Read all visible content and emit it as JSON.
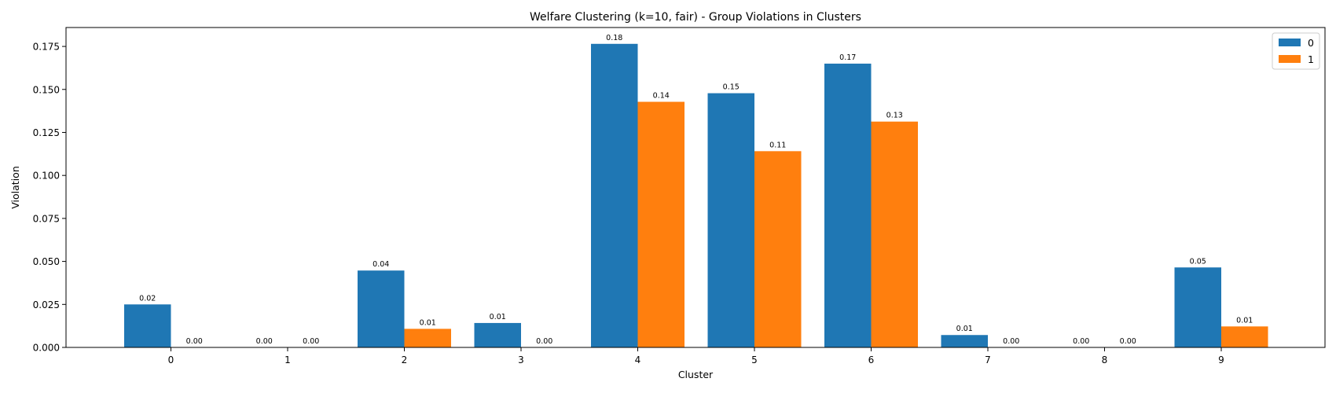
{
  "chart_data": {
    "type": "bar",
    "title": "Welfare Clustering (k=10, fair) - Group Violations in Clusters",
    "xlabel": "Cluster",
    "ylabel": "Violation",
    "categories": [
      "0",
      "1",
      "2",
      "3",
      "4",
      "5",
      "6",
      "7",
      "8",
      "9"
    ],
    "series": [
      {
        "name": "0",
        "color": "#1f77b4",
        "values": [
          0.025,
          0.0,
          0.0447,
          0.0142,
          0.1765,
          0.1478,
          0.165,
          0.0072,
          0.0,
          0.0465
        ],
        "labels": [
          "0.02",
          "0.00",
          "0.04",
          "0.01",
          "0.18",
          "0.15",
          "0.17",
          "0.01",
          "0.00",
          "0.05"
        ]
      },
      {
        "name": "1",
        "color": "#ff7f0e",
        "values": [
          0.0,
          0.0,
          0.0108,
          0.0,
          0.1428,
          0.1141,
          0.1313,
          0.0,
          0.0,
          0.0122
        ],
        "labels": [
          "0.00",
          "0.00",
          "0.01",
          "0.00",
          "0.14",
          "0.11",
          "0.13",
          "0.00",
          "0.00",
          "0.01"
        ]
      }
    ],
    "ylim": [
      0,
      0.186
    ],
    "yticks": [
      "0.000",
      "0.025",
      "0.050",
      "0.075",
      "0.100",
      "0.125",
      "0.150",
      "0.175"
    ],
    "grid": false,
    "legend": "top-right"
  }
}
